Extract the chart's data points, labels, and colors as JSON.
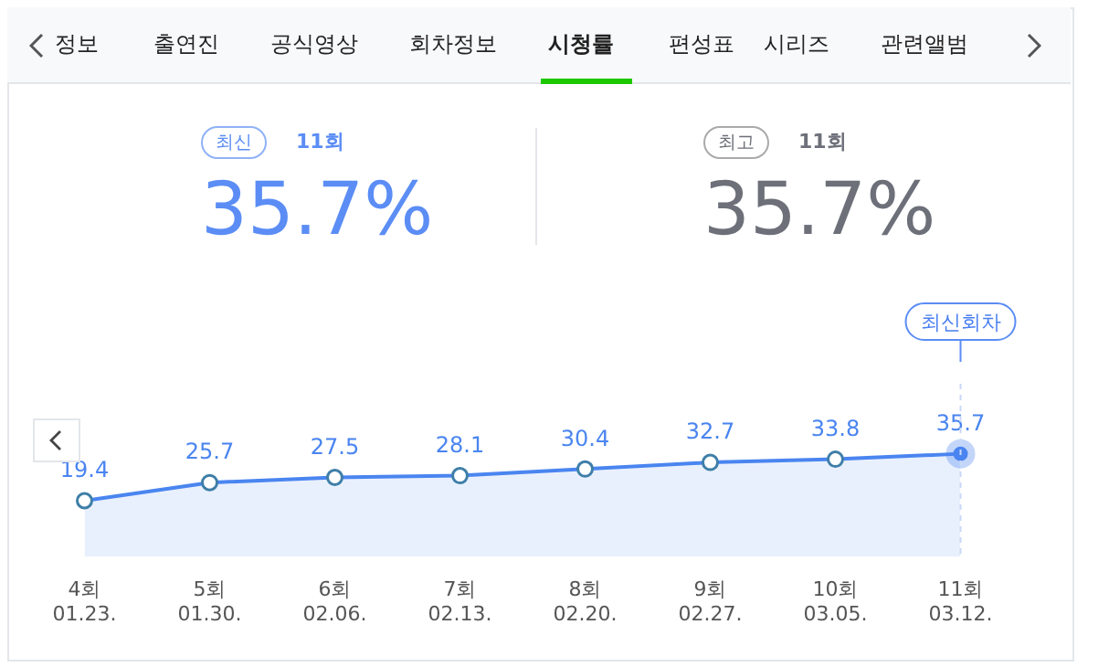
{
  "chart_data": [
    {
      "type": "other",
      "categories": [
        "정보",
        "출연진",
        "공식영상",
        "회차정보",
        "시청률",
        "편성표",
        "시리즈",
        "관련앨범"
      ],
      "annotations": [
        "최신",
        "11회",
        "35.7%",
        "최고",
        "11회",
        "35.7%"
      ]
    },
    {
      "type": "area",
      "categories": [
        "4회 01.23.",
        "5회 01.30.",
        "6회 02.06.",
        "7회 02.13.",
        "8회 02.20.",
        "9회 02.27.",
        "10회 03.05.",
        "11회 03.12."
      ],
      "series": [
        {
          "color": "#4a85f0",
          "values": [
            19.4,
            25.7,
            27.5,
            28.1,
            30.4,
            32.7,
            33.8,
            35.7
          ]
        }
      ],
      "data_labels": true,
      "marker": "circle",
      "legend": false,
      "tick_labels": "x",
      "ref_lines": [
        {
          "axis": "x",
          "value": "11회 03.12.",
          "color": "#c9d8f7",
          "line_style": "dashed"
        }
      ],
      "annotations": [
        "최신회차"
      ]
    }
  ]
}
